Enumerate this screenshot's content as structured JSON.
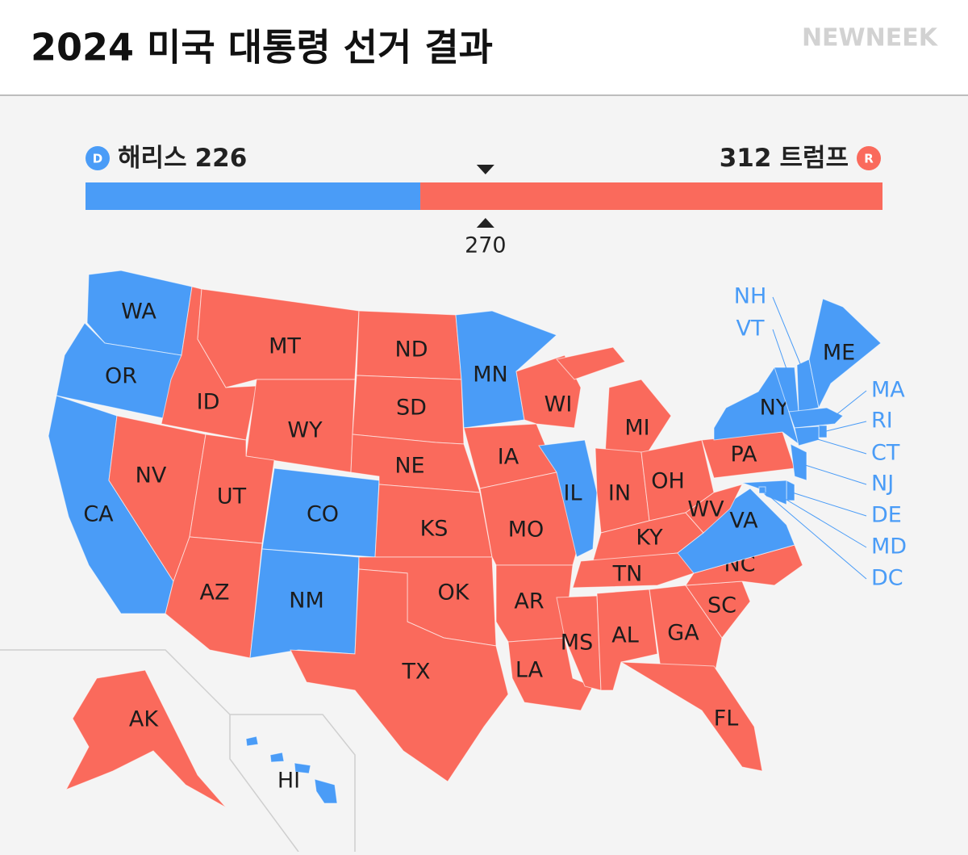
{
  "header": {
    "title": "2024 미국 대통령 선거 결과",
    "brand": "NEWNEEK"
  },
  "chart_data": {
    "type": "map",
    "parties": [
      {
        "badge": "D",
        "name": "해리스",
        "votes": 226,
        "color": "#4a9cf7"
      },
      {
        "badge": "R",
        "name": "트럼프",
        "votes": 312,
        "color": "#fa6a5c"
      }
    ],
    "threshold": 270,
    "states": [
      {
        "abbr": "WA",
        "winner": "D"
      },
      {
        "abbr": "OR",
        "winner": "D"
      },
      {
        "abbr": "CA",
        "winner": "D"
      },
      {
        "abbr": "ID",
        "winner": "R"
      },
      {
        "abbr": "NV",
        "winner": "R"
      },
      {
        "abbr": "MT",
        "winner": "R"
      },
      {
        "abbr": "WY",
        "winner": "R"
      },
      {
        "abbr": "UT",
        "winner": "R"
      },
      {
        "abbr": "CO",
        "winner": "D"
      },
      {
        "abbr": "AZ",
        "winner": "R"
      },
      {
        "abbr": "NM",
        "winner": "D"
      },
      {
        "abbr": "ND",
        "winner": "R"
      },
      {
        "abbr": "SD",
        "winner": "R"
      },
      {
        "abbr": "NE",
        "winner": "R"
      },
      {
        "abbr": "KS",
        "winner": "R"
      },
      {
        "abbr": "OK",
        "winner": "R"
      },
      {
        "abbr": "TX",
        "winner": "R"
      },
      {
        "abbr": "MN",
        "winner": "D"
      },
      {
        "abbr": "IA",
        "winner": "R"
      },
      {
        "abbr": "MO",
        "winner": "R"
      },
      {
        "abbr": "AR",
        "winner": "R"
      },
      {
        "abbr": "LA",
        "winner": "R"
      },
      {
        "abbr": "WI",
        "winner": "R"
      },
      {
        "abbr": "IL",
        "winner": "D"
      },
      {
        "abbr": "MI",
        "winner": "R"
      },
      {
        "abbr": "IN",
        "winner": "R"
      },
      {
        "abbr": "OH",
        "winner": "R"
      },
      {
        "abbr": "KY",
        "winner": "R"
      },
      {
        "abbr": "TN",
        "winner": "R"
      },
      {
        "abbr": "MS",
        "winner": "R"
      },
      {
        "abbr": "AL",
        "winner": "R"
      },
      {
        "abbr": "GA",
        "winner": "R"
      },
      {
        "abbr": "FL",
        "winner": "R"
      },
      {
        "abbr": "SC",
        "winner": "R"
      },
      {
        "abbr": "NC",
        "winner": "R"
      },
      {
        "abbr": "VA",
        "winner": "D"
      },
      {
        "abbr": "WV",
        "winner": "R"
      },
      {
        "abbr": "PA",
        "winner": "R"
      },
      {
        "abbr": "NY",
        "winner": "D"
      },
      {
        "abbr": "NJ",
        "winner": "D"
      },
      {
        "abbr": "DE",
        "winner": "D"
      },
      {
        "abbr": "MD",
        "winner": "D"
      },
      {
        "abbr": "DC",
        "winner": "D"
      },
      {
        "abbr": "VT",
        "winner": "D"
      },
      {
        "abbr": "NH",
        "winner": "D"
      },
      {
        "abbr": "ME",
        "winner": "D"
      },
      {
        "abbr": "MA",
        "winner": "D"
      },
      {
        "abbr": "RI",
        "winner": "D"
      },
      {
        "abbr": "CT",
        "winner": "D"
      },
      {
        "abbr": "AK",
        "winner": "R"
      },
      {
        "abbr": "HI",
        "winner": "D"
      }
    ]
  }
}
